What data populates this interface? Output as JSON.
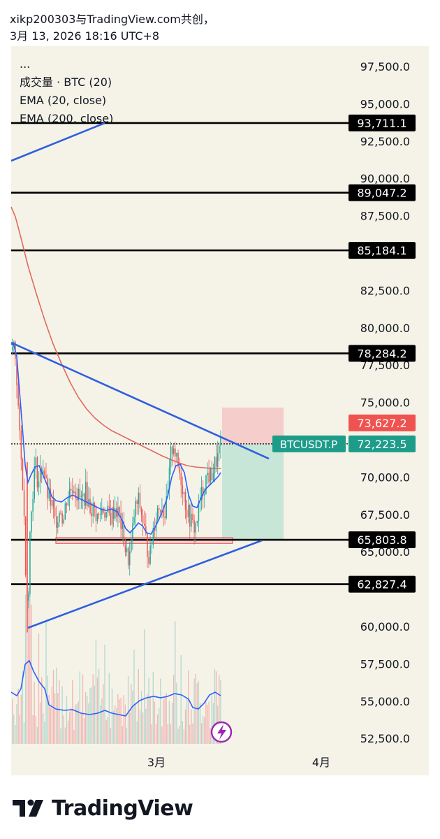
{
  "header": {
    "line1": "xikp200303与TradingView.com共创，",
    "line2": "3月 13, 2026 18:16 UTC+8"
  },
  "legend": {
    "collapse": "...",
    "volume": "成交量 · BTC (20)",
    "ema20": "EMA (20, close)",
    "ema200": "EMA (200, close)"
  },
  "colors": {
    "background": "#f5f3e8",
    "ema20": "#2962ff",
    "ema200": "#e06a5f",
    "trendline": "#2f5fe0",
    "candle_up": "#26a69a",
    "candle_down": "#ef5350",
    "level_line": "#000000",
    "last_price": "#1e9c8a",
    "stop": "#ef5350",
    "logo": "#131722"
  },
  "chart_data": {
    "type": "candlestick",
    "symbol": "BTCUSDT.P",
    "y_axis_ticks": [
      "97,500.0",
      "95,000.0",
      "92,500.0",
      "90,000.0",
      "87,500.0",
      "82,500.0",
      "80,000.0",
      "77,500.0",
      "75,000.0",
      "70,000.0",
      "67,500.0",
      "65,000.0",
      "60,000.0",
      "57,500.0",
      "55,000.0",
      "52,500.0"
    ],
    "x_axis_ticks": [
      "3月",
      "4月"
    ],
    "ylim": [
      51500,
      99000
    ],
    "horizontal_levels": [
      {
        "price": 93711.1,
        "label": "93,711.1"
      },
      {
        "price": 89047.2,
        "label": "89,047.2"
      },
      {
        "price": 85184.1,
        "label": "85,184.1"
      },
      {
        "price": 78284.2,
        "label": "78,284.2"
      },
      {
        "price": 65803.8,
        "label": "65,803.8"
      },
      {
        "price": 62827.4,
        "label": "62,827.4"
      }
    ],
    "last_price": {
      "price": 72223.5,
      "label": "72,223.5"
    },
    "target_price": {
      "price": 73627.2,
      "label": "73,627.2"
    },
    "position_tool": {
      "entry": 72223.5,
      "stop": 73627.2,
      "target": 65803.8
    },
    "support_zone": {
      "from": 65650,
      "to": 65950
    },
    "trendlines": [
      {
        "name": "upper-left-line",
        "points": [
          [
            0,
            91400
          ],
          [
            1,
            93711.1
          ]
        ]
      },
      {
        "name": "descending-resistance",
        "points": [
          [
            0,
            78900
          ],
          [
            1,
            71600
          ]
        ]
      },
      {
        "name": "ascending-support",
        "points": [
          [
            0,
            59900
          ],
          [
            1,
            65800
          ]
        ]
      }
    ],
    "legend_entries": [
      "成交量 · BTC (20)",
      "EMA (20, close)",
      "EMA (200, close)"
    ]
  },
  "footer": {
    "brand": "TradingView",
    "flash_icon": "lightning-icon"
  }
}
